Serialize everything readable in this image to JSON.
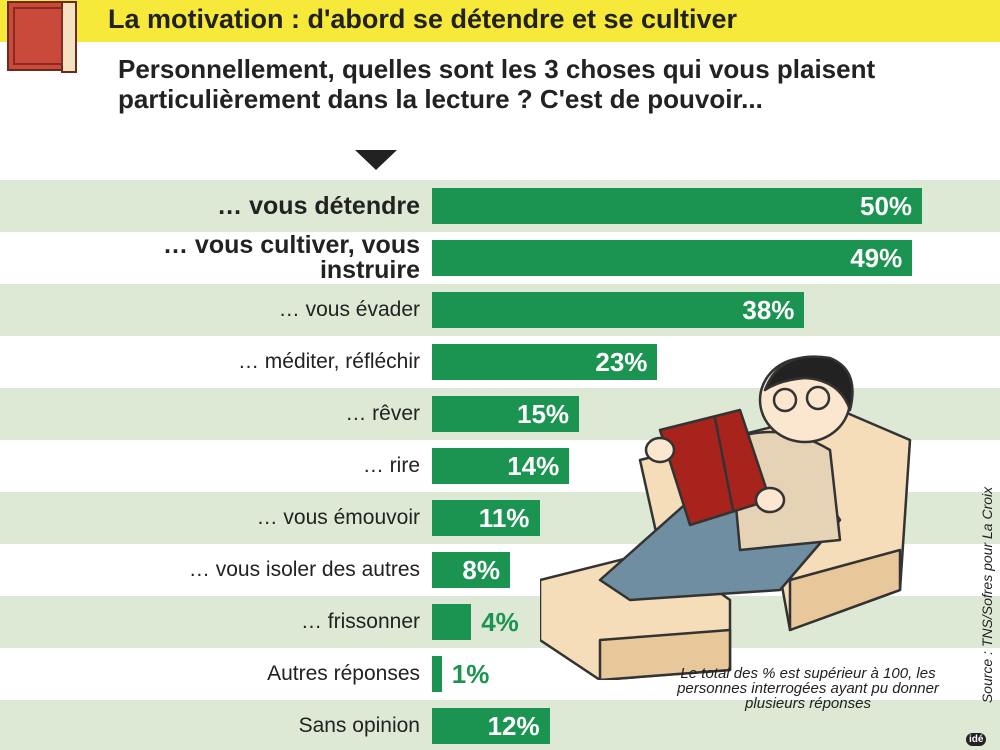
{
  "chart_data": {
    "type": "bar",
    "title": "La motivation : d'abord se détendre et se cultiver",
    "question": "Personnellement, quelles sont les 3 choses qui vous plaisent particulièrement dans la lecture ? C'est de pouvoir...",
    "categories": [
      "… vous détendre",
      "… vous cultiver, vous instruire",
      "… vous évader",
      "… méditer, réfléchir",
      "… rêver",
      "… rire",
      "… vous émouvoir",
      "… vous isoler des autres",
      "… frissonner",
      "Autres réponses",
      "Sans opinion"
    ],
    "values": [
      50,
      49,
      38,
      23,
      15,
      14,
      11,
      8,
      4,
      1,
      12
    ],
    "value_labels": [
      "50%",
      "49%",
      "38%",
      "23%",
      "15%",
      "14%",
      "11%",
      "8%",
      "4%",
      "1%",
      "12%"
    ],
    "color": "#1b9451",
    "note": "Le total des % est supérieur à 100, les personnes interrogées ayant pu donner plusieurs réponses",
    "source": "Source : TNS/Sofres pour La Croix",
    "logo": "idé"
  }
}
